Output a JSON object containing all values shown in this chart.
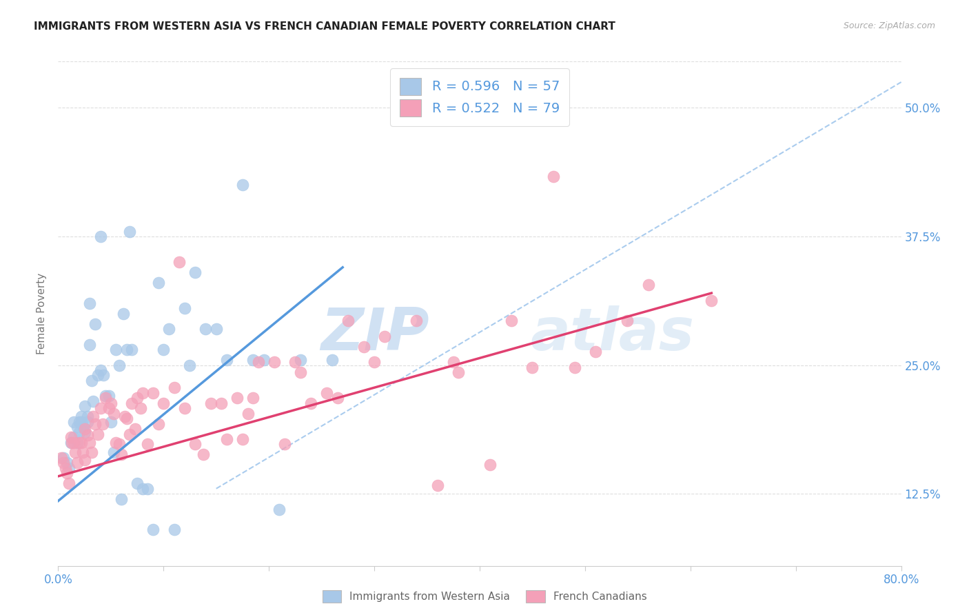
{
  "title": "IMMIGRANTS FROM WESTERN ASIA VS FRENCH CANADIAN FEMALE POVERTY CORRELATION CHART",
  "source": "Source: ZipAtlas.com",
  "ylabel": "Female Poverty",
  "y_ticks": [
    0.125,
    0.25,
    0.375,
    0.5
  ],
  "y_tick_labels": [
    "12.5%",
    "25.0%",
    "37.5%",
    "50.0%"
  ],
  "xlim": [
    0.0,
    0.8
  ],
  "ylim": [
    0.055,
    0.545
  ],
  "blue_color": "#a8c8e8",
  "pink_color": "#f4a0b8",
  "blue_line_color": "#5599dd",
  "pink_line_color": "#e04070",
  "dashed_line_color": "#aaccee",
  "watermark_color": "#c8ddf0",
  "blue_scatter_x": [
    0.005,
    0.008,
    0.01,
    0.012,
    0.015,
    0.015,
    0.018,
    0.018,
    0.02,
    0.02,
    0.022,
    0.022,
    0.024,
    0.025,
    0.025,
    0.028,
    0.028,
    0.03,
    0.03,
    0.032,
    0.033,
    0.035,
    0.038,
    0.04,
    0.04,
    0.043,
    0.045,
    0.048,
    0.05,
    0.053,
    0.055,
    0.058,
    0.06,
    0.062,
    0.065,
    0.068,
    0.07,
    0.075,
    0.08,
    0.085,
    0.09,
    0.095,
    0.1,
    0.105,
    0.11,
    0.12,
    0.125,
    0.13,
    0.14,
    0.15,
    0.16,
    0.175,
    0.185,
    0.195,
    0.21,
    0.23,
    0.26
  ],
  "blue_scatter_y": [
    0.16,
    0.155,
    0.15,
    0.175,
    0.18,
    0.195,
    0.175,
    0.19,
    0.195,
    0.185,
    0.2,
    0.195,
    0.19,
    0.21,
    0.185,
    0.2,
    0.195,
    0.31,
    0.27,
    0.235,
    0.215,
    0.29,
    0.24,
    0.375,
    0.245,
    0.24,
    0.22,
    0.22,
    0.195,
    0.165,
    0.265,
    0.25,
    0.12,
    0.3,
    0.265,
    0.38,
    0.265,
    0.135,
    0.13,
    0.13,
    0.09,
    0.33,
    0.265,
    0.285,
    0.09,
    0.305,
    0.25,
    0.34,
    0.285,
    0.285,
    0.255,
    0.425,
    0.255,
    0.255,
    0.11,
    0.255,
    0.255
  ],
  "pink_scatter_x": [
    0.003,
    0.005,
    0.007,
    0.008,
    0.01,
    0.012,
    0.013,
    0.015,
    0.016,
    0.018,
    0.02,
    0.022,
    0.023,
    0.025,
    0.025,
    0.028,
    0.03,
    0.032,
    0.033,
    0.035,
    0.038,
    0.04,
    0.042,
    0.045,
    0.048,
    0.05,
    0.053,
    0.055,
    0.058,
    0.06,
    0.063,
    0.065,
    0.068,
    0.07,
    0.073,
    0.075,
    0.078,
    0.08,
    0.085,
    0.09,
    0.095,
    0.1,
    0.11,
    0.115,
    0.12,
    0.13,
    0.138,
    0.145,
    0.155,
    0.16,
    0.17,
    0.175,
    0.18,
    0.185,
    0.19,
    0.205,
    0.215,
    0.225,
    0.23,
    0.24,
    0.255,
    0.265,
    0.275,
    0.29,
    0.3,
    0.31,
    0.34,
    0.36,
    0.375,
    0.38,
    0.41,
    0.43,
    0.45,
    0.47,
    0.49,
    0.51,
    0.54,
    0.56,
    0.62
  ],
  "pink_scatter_y": [
    0.16,
    0.155,
    0.15,
    0.145,
    0.135,
    0.18,
    0.175,
    0.175,
    0.165,
    0.155,
    0.175,
    0.175,
    0.165,
    0.158,
    0.188,
    0.182,
    0.175,
    0.165,
    0.2,
    0.193,
    0.183,
    0.208,
    0.193,
    0.218,
    0.208,
    0.213,
    0.203,
    0.175,
    0.173,
    0.163,
    0.2,
    0.198,
    0.183,
    0.213,
    0.188,
    0.218,
    0.208,
    0.223,
    0.173,
    0.223,
    0.193,
    0.213,
    0.228,
    0.35,
    0.208,
    0.173,
    0.163,
    0.213,
    0.213,
    0.178,
    0.218,
    0.178,
    0.203,
    0.218,
    0.253,
    0.253,
    0.173,
    0.253,
    0.243,
    0.213,
    0.223,
    0.218,
    0.293,
    0.268,
    0.253,
    0.278,
    0.293,
    0.133,
    0.253,
    0.243,
    0.153,
    0.293,
    0.248,
    0.433,
    0.248,
    0.263,
    0.293,
    0.328,
    0.313
  ],
  "blue_line_x": [
    0.0,
    0.27
  ],
  "blue_line_y": [
    0.118,
    0.345
  ],
  "pink_line_x": [
    0.0,
    0.62
  ],
  "pink_line_y": [
    0.142,
    0.32
  ],
  "dashed_line_x": [
    0.15,
    0.8
  ],
  "dashed_line_y": [
    0.13,
    0.525
  ],
  "bottom_legend_blue": "Immigrants from Western Asia",
  "bottom_legend_pink": "French Canadians"
}
